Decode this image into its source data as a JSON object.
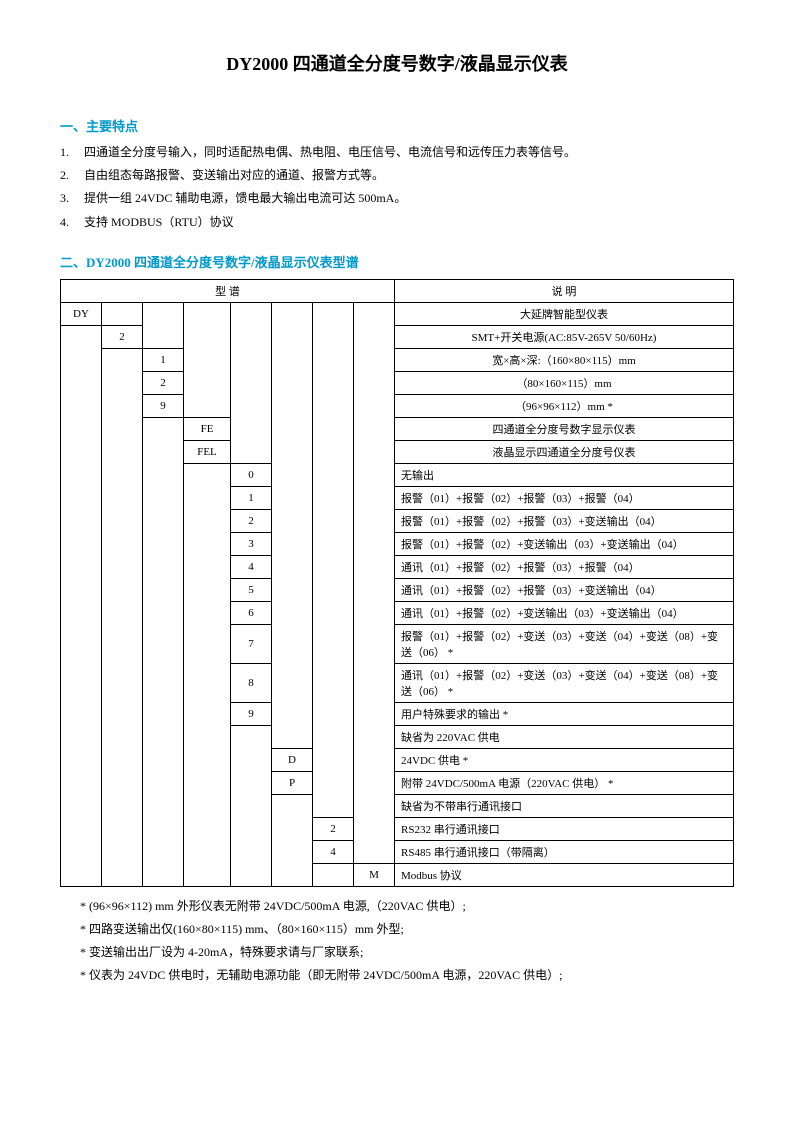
{
  "title": "DY2000 四通道全分度号数字/液晶显示仪表",
  "section1": {
    "heading": "一、主要特点",
    "items": [
      "四通道全分度号输入，同时适配热电偶、热电阻、电压信号、电流信号和远传压力表等信号。",
      "自由组态每路报警、变送输出对应的通道、报警方式等。",
      "提供一组 24VDC 辅助电源，馈电最大输出电流可达 500mA。",
      "支持 MODBUS（RTU）协议"
    ]
  },
  "section2": {
    "heading": "二、DY2000 四通道全分度号数字/液晶显示仪表型谱",
    "header_left": "型  谱",
    "header_right": "说  明",
    "rows": [
      {
        "codes": [
          "DY",
          "",
          "",
          "",
          "",
          "",
          "",
          ""
        ],
        "desc": "大延牌智能型仪表",
        "align": "center"
      },
      {
        "codes": [
          "",
          "2",
          "",
          "",
          "",
          "",
          "",
          ""
        ],
        "desc": "SMT+开关电源(AC:85V-265V  50/60Hz)",
        "align": "center"
      },
      {
        "codes": [
          "",
          "",
          "1",
          "",
          "",
          "",
          "",
          ""
        ],
        "desc": "宽×高×深:（160×80×115）mm",
        "align": "center"
      },
      {
        "codes": [
          "",
          "",
          "2",
          "",
          "",
          "",
          "",
          ""
        ],
        "desc": "（80×160×115）mm",
        "align": "center"
      },
      {
        "codes": [
          "",
          "",
          "9",
          "",
          "",
          "",
          "",
          ""
        ],
        "desc": "（96×96×112）mm          *",
        "align": "center"
      },
      {
        "codes": [
          "",
          "",
          "",
          "FE",
          "",
          "",
          "",
          ""
        ],
        "desc": "四通道全分度号数字显示仪表",
        "align": "center"
      },
      {
        "codes": [
          "",
          "",
          "",
          "FEL",
          "",
          "",
          "",
          ""
        ],
        "desc": "液晶显示四通道全分度号仪表",
        "align": "center"
      },
      {
        "codes": [
          "",
          "",
          "",
          "",
          "0",
          "",
          "",
          ""
        ],
        "desc": "无输出",
        "align": "left"
      },
      {
        "codes": [
          "",
          "",
          "",
          "",
          "1",
          "",
          "",
          ""
        ],
        "desc": "报警（01）+报警（02）+报警（03）+报警（04）",
        "align": "left"
      },
      {
        "codes": [
          "",
          "",
          "",
          "",
          "2",
          "",
          "",
          ""
        ],
        "desc": "报警（01）+报警（02）+报警（03）+变送输出（04）",
        "align": "left"
      },
      {
        "codes": [
          "",
          "",
          "",
          "",
          "3",
          "",
          "",
          ""
        ],
        "desc": "报警（01）+报警（02）+变送输出（03）+变送输出（04）",
        "align": "left"
      },
      {
        "codes": [
          "",
          "",
          "",
          "",
          "4",
          "",
          "",
          ""
        ],
        "desc": "通讯（01）+报警（02）+报警（03）+报警（04）",
        "align": "left"
      },
      {
        "codes": [
          "",
          "",
          "",
          "",
          "5",
          "",
          "",
          ""
        ],
        "desc": "通讯（01）+报警（02）+报警（03）+变送输出（04）",
        "align": "left"
      },
      {
        "codes": [
          "",
          "",
          "",
          "",
          "6",
          "",
          "",
          ""
        ],
        "desc": "通讯（01）+报警（02）+变送输出（03）+变送输出（04）",
        "align": "left"
      },
      {
        "codes": [
          "",
          "",
          "",
          "",
          "7",
          "",
          "",
          ""
        ],
        "desc": "报警（01）+报警（02）+变送（03）+变送（04）+变送（08）+变送（06）   *",
        "align": "left"
      },
      {
        "codes": [
          "",
          "",
          "",
          "",
          "8",
          "",
          "",
          ""
        ],
        "desc": "通讯（01）+报警（02）+变送（03）+变送（04）+变送（08）+变送（06）   *",
        "align": "left"
      },
      {
        "codes": [
          "",
          "",
          "",
          "",
          "9",
          "",
          "",
          ""
        ],
        "desc": "用户特殊要求的输出             *",
        "align": "left"
      },
      {
        "codes": [
          "",
          "",
          "",
          "",
          "",
          "",
          "",
          ""
        ],
        "desc": "缺省为 220VAC 供电",
        "align": "left"
      },
      {
        "codes": [
          "",
          "",
          "",
          "",
          "",
          "D",
          "",
          ""
        ],
        "desc": "24VDC 供电                   *",
        "align": "left"
      },
      {
        "codes": [
          "",
          "",
          "",
          "",
          "",
          "P",
          "",
          ""
        ],
        "desc": "附带 24VDC/500mA 电源（220VAC 供电）     *",
        "align": "left"
      },
      {
        "codes": [
          "",
          "",
          "",
          "",
          "",
          "",
          "",
          ""
        ],
        "desc": "缺省为不带串行通讯接口",
        "align": "left"
      },
      {
        "codes": [
          "",
          "",
          "",
          "",
          "",
          "",
          "2",
          ""
        ],
        "desc": "RS232 串行通讯接口",
        "align": "left"
      },
      {
        "codes": [
          "",
          "",
          "",
          "",
          "",
          "",
          "4",
          ""
        ],
        "desc": "RS485 串行通讯接口（带隔离）",
        "align": "left"
      },
      {
        "codes": [
          "",
          "",
          "",
          "",
          "",
          "",
          "",
          "M"
        ],
        "desc": "Modbus 协议",
        "align": "left"
      }
    ]
  },
  "notes": [
    "*  (96×96×112) mm 外形仪表无附带 24VDC/500mA 电源,（220VAC 供电）;",
    "*  四路变送输出仅(160×80×115) mm、（80×160×115）mm 外型;",
    "*  变送输出出厂设为 4-20mA，特殊要求请与厂家联系;",
    "*  仪表为 24VDC 供电时，无辅助电源功能（即无附带 24VDC/500mA 电源，220VAC 供电）;"
  ]
}
